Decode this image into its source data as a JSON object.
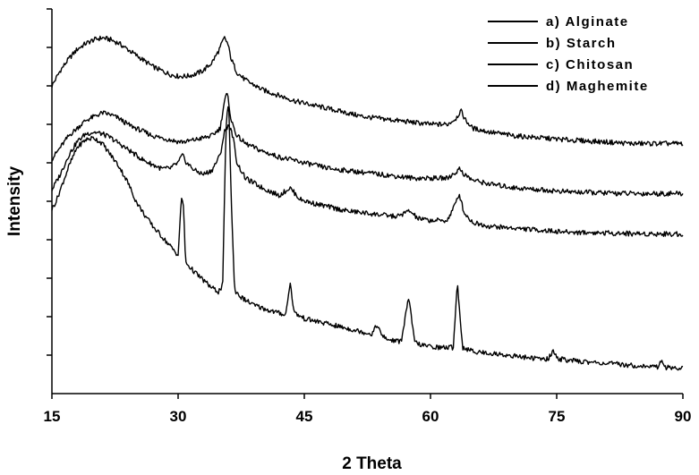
{
  "chart_data": {
    "type": "line",
    "xlabel": "2 Theta",
    "ylabel": "Intensity",
    "xlim": [
      15,
      90
    ],
    "ylim": [
      0,
      100
    ],
    "x_ticks": [
      15,
      30,
      45,
      60,
      75,
      90
    ],
    "x_tick_labels": [
      "15",
      "30",
      "45",
      "60",
      "75",
      "90"
    ],
    "y_tick_count": 10,
    "y_tick_labels_shown": false,
    "grid": false,
    "legend_position": "top-right",
    "series": [
      {
        "name": "a) Alginate",
        "x": [
          15,
          16,
          17,
          18,
          19,
          20,
          21,
          22,
          23,
          24,
          25,
          26,
          27,
          28,
          29,
          30,
          31,
          32,
          33,
          34,
          34.8,
          35.5,
          35.9,
          36.3,
          37,
          38,
          40,
          42,
          44,
          46,
          48,
          50,
          52,
          54,
          56,
          58,
          60,
          62,
          63,
          63.6,
          64.2,
          65,
          67,
          70,
          73,
          76,
          80,
          84,
          88,
          90
        ],
        "y": [
          80,
          84,
          87,
          89.5,
          91,
          92,
          92.5,
          92,
          91,
          89.5,
          88,
          86.5,
          85,
          84,
          83,
          82.5,
          82.5,
          83,
          84,
          86,
          89,
          92.5,
          91,
          87,
          83.5,
          81.5,
          79,
          77.5,
          76,
          75,
          74,
          73,
          72,
          71.5,
          71,
          70.5,
          70,
          70,
          71.5,
          73.5,
          71,
          69,
          68,
          67,
          66.5,
          66,
          65.5,
          65,
          65,
          65
        ]
      },
      {
        "name": "b) Starch",
        "x": [
          15,
          16,
          17,
          18,
          19,
          20,
          21,
          22,
          23,
          24,
          25,
          26,
          27,
          28,
          29,
          30,
          31,
          32,
          33,
          34,
          35,
          35.5,
          35.8,
          36.0,
          36.3,
          37,
          38,
          40,
          42,
          44,
          46,
          48,
          50,
          52,
          54,
          56,
          58,
          60,
          62,
          63,
          63.5,
          64,
          65,
          67,
          70,
          73,
          76,
          80,
          84,
          88,
          90
        ],
        "y": [
          61,
          64,
          67,
          69,
          71,
          72,
          73,
          72.5,
          71.5,
          70,
          69,
          68,
          67,
          66.5,
          66,
          65.5,
          65.5,
          66,
          66.5,
          67,
          69,
          76,
          78,
          76,
          71,
          67,
          65,
          63,
          61.5,
          60.5,
          59.5,
          58.5,
          58,
          57.5,
          57,
          56.5,
          56,
          56,
          56,
          57.5,
          58.5,
          57,
          55.5,
          54.5,
          53.5,
          53,
          52.5,
          52.2,
          52,
          52,
          52
        ]
      },
      {
        "name": "c) Chitosan",
        "x": [
          15,
          16,
          17,
          18,
          19,
          20,
          21,
          22,
          23,
          24,
          25,
          26,
          27,
          28,
          29,
          30,
          30.5,
          31,
          32,
          33,
          34,
          35,
          35.5,
          36,
          36.5,
          37,
          38,
          40,
          42,
          43.3,
          44.5,
          46,
          48,
          50,
          52,
          54,
          56,
          57.5,
          58.5,
          60,
          62,
          63,
          63.4,
          64,
          65,
          67,
          70,
          73,
          76,
          80,
          84,
          88,
          90
        ],
        "y": [
          53,
          57,
          62,
          65.5,
          67.5,
          68,
          67.5,
          66.5,
          65,
          63.5,
          62,
          60.5,
          59.5,
          58.5,
          58.5,
          60,
          62,
          60,
          58,
          57,
          58,
          62,
          68,
          70,
          67,
          60,
          56,
          53.5,
          51.5,
          53.5,
          50.5,
          49.5,
          48.5,
          47.5,
          47,
          46.5,
          46,
          47.5,
          45.5,
          45,
          45,
          49.5,
          52,
          47,
          44.5,
          43.5,
          43,
          42.5,
          42,
          41.8,
          41.6,
          41.5,
          41.5
        ]
      },
      {
        "name": "d) Maghemite",
        "x": [
          15,
          15.5,
          16,
          17,
          18,
          19,
          20,
          21,
          22,
          23,
          24,
          25,
          26,
          27,
          28,
          29,
          30,
          30.4,
          30.6,
          30.9,
          32,
          33,
          34,
          34.8,
          35.3,
          35.7,
          36.0,
          36.3,
          36.7,
          37.5,
          39,
          41,
          42.8,
          43.3,
          43.8,
          45,
          47,
          49,
          51,
          53,
          53.7,
          54.2,
          55,
          56.5,
          57.4,
          58.1,
          59,
          61,
          62.7,
          63.2,
          63.8,
          65,
          67,
          69,
          71,
          73,
          74,
          74.5,
          75.3,
          77,
          80,
          83,
          86,
          87,
          87.5,
          88,
          90
        ],
        "y": [
          48,
          50,
          53,
          59,
          64,
          66,
          66.5,
          65,
          62,
          59,
          55,
          50,
          46.5,
          43.5,
          41,
          38.5,
          36,
          51,
          50,
          34,
          31.5,
          29.5,
          27.5,
          26.5,
          28,
          70,
          76,
          52,
          27,
          25,
          23,
          21.5,
          20.5,
          29,
          21,
          19.5,
          18.5,
          17.5,
          16.5,
          15.5,
          18,
          15,
          14,
          13.5,
          25,
          13.5,
          12.5,
          12,
          12,
          29,
          12,
          11,
          10.5,
          10,
          9.5,
          9,
          9,
          11,
          9,
          8.5,
          8,
          7.5,
          7,
          7,
          8.5,
          6.8,
          6.5
        ]
      }
    ]
  }
}
